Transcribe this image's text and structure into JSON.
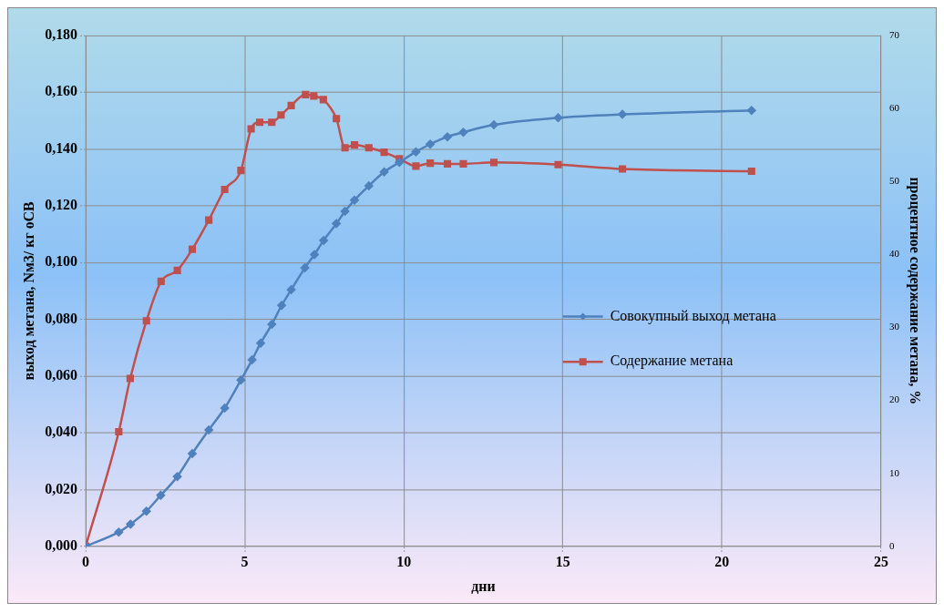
{
  "chart_data": {
    "type": "line",
    "xlabel": "дни",
    "ylabel": "выход метана, Nм3/ кг оСВ",
    "y2label": "процентное содержание метана, %",
    "xlim": [
      0,
      25
    ],
    "xticks": [
      0,
      5,
      10,
      15,
      20,
      25
    ],
    "ylim": [
      0,
      0.18
    ],
    "yticks": [
      {
        "value": 0,
        "label": "0,000"
      },
      {
        "value": 0.02,
        "label": "0,020"
      },
      {
        "value": 0.04,
        "label": "0,040"
      },
      {
        "value": 0.06,
        "label": "0,060"
      },
      {
        "value": 0.08,
        "label": "0,080"
      },
      {
        "value": 0.1,
        "label": "0,100"
      },
      {
        "value": 0.12,
        "label": "0,120"
      },
      {
        "value": 0.14,
        "label": "0,140"
      },
      {
        "value": 0.16,
        "label": "0,160"
      },
      {
        "value": 0.18,
        "label": "0,180"
      }
    ],
    "y2lim": [
      0,
      70
    ],
    "y2ticks": [
      0,
      10,
      20,
      30,
      40,
      50,
      60,
      70
    ],
    "grid": true,
    "legend": "right",
    "line_style": "solid",
    "series": [
      {
        "name": "Совокупный выход метана",
        "color": "#4f81bd",
        "marker": "diamond",
        "x": [
          0,
          1.04,
          1.41,
          1.91,
          2.36,
          2.88,
          3.35,
          3.87,
          4.37,
          4.88,
          5.23,
          5.5,
          5.85,
          6.16,
          6.46,
          6.89,
          7.19,
          7.48,
          7.88,
          8.15,
          8.45,
          8.9,
          9.38,
          9.86,
          10.38,
          10.83,
          11.37,
          11.87,
          12.83,
          14.85,
          16.87,
          20.93
        ],
        "values": [
          0,
          0.005,
          0.0078,
          0.0124,
          0.018,
          0.0246,
          0.0327,
          0.041,
          0.0487,
          0.0586,
          0.0657,
          0.0716,
          0.0782,
          0.0849,
          0.0904,
          0.0981,
          0.1028,
          0.1078,
          0.1137,
          0.118,
          0.122,
          0.127,
          0.1319,
          0.1353,
          0.139,
          0.1417,
          0.1443,
          0.1459,
          0.1485,
          0.151,
          0.1522,
          0.1536
        ]
      },
      {
        "name": "Содержание метана",
        "color": "#c0504d",
        "marker": "square",
        "axis": "y2",
        "x": [
          0,
          1.04,
          1.4,
          1.91,
          2.37,
          2.88,
          3.35,
          3.87,
          4.37,
          4.88,
          5.2,
          5.47,
          5.85,
          6.14,
          6.46,
          6.91,
          7.17,
          7.47,
          7.88,
          8.15,
          8.45,
          8.9,
          9.38,
          9.86,
          10.38,
          10.83,
          11.37,
          11.87,
          12.83,
          14.85,
          16.87,
          20.93
        ],
        "values": [
          0,
          15.7,
          23,
          30.9,
          36.3,
          37.8,
          40.7,
          44.7,
          48.9,
          51.5,
          57.2,
          58.1,
          58.1,
          59.1,
          60.4,
          61.9,
          61.7,
          61.2,
          58.6,
          54.6,
          55,
          54.6,
          54,
          53.1,
          52.1,
          52.5,
          52.4,
          52.4,
          52.6,
          52.3,
          51.7,
          51.4
        ]
      }
    ]
  }
}
